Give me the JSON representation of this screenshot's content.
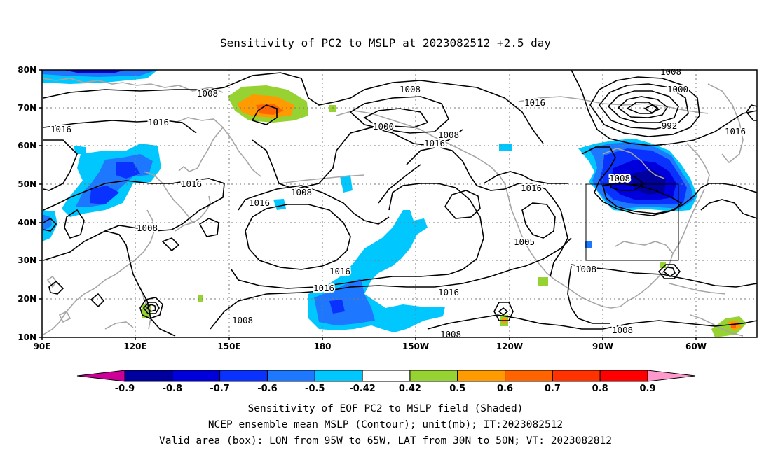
{
  "title": "Sensitivity of PC2 to MSLP at 2023082512 +2.5 day",
  "lat_labels": [
    "80N",
    "70N",
    "60N",
    "50N",
    "40N",
    "30N",
    "20N",
    "10N"
  ],
  "lon_labels": [
    "90E",
    "120E",
    "150E",
    "180",
    "150W",
    "120W",
    "90W",
    "60W"
  ],
  "contour_labels": [
    {
      "text": "1008"
    },
    {
      "text": "1016"
    },
    {
      "text": "1016"
    },
    {
      "text": "1016"
    },
    {
      "text": "1008"
    },
    {
      "text": "1008"
    },
    {
      "text": "1000"
    },
    {
      "text": "1008"
    },
    {
      "text": "1016"
    },
    {
      "text": "1008"
    },
    {
      "text": "1016"
    },
    {
      "text": "1016"
    },
    {
      "text": "1016"
    },
    {
      "text": "1016"
    },
    {
      "text": "1008"
    },
    {
      "text": "1008"
    },
    {
      "text": "1016"
    },
    {
      "text": "1005"
    },
    {
      "text": "1008"
    },
    {
      "text": "1008"
    },
    {
      "text": "1008"
    },
    {
      "text": "1000"
    },
    {
      "text": "992"
    },
    {
      "text": "1016"
    },
    {
      "text": "1016"
    },
    {
      "text": "1008"
    }
  ],
  "colorbar": {
    "colors": [
      "#cc0099",
      "#00009e",
      "#0000dc",
      "#0a32ff",
      "#1e78ff",
      "#00c8ff",
      "#ffffff",
      "#96d232",
      "#ff9b00",
      "#ff6400",
      "#ff3200",
      "#ff0000",
      "#ff99cc"
    ],
    "labels": [
      "-0.9",
      "-0.8",
      "-0.7",
      "-0.6",
      "-0.5",
      "-0.42",
      "0.42",
      "0.5",
      "0.6",
      "0.7",
      "0.8",
      "0.9"
    ]
  },
  "captions": [
    "Sensitivity of EOF PC2 to MSLP field (Shaded)",
    "NCEP ensemble mean MSLP (Contour); unit(mb); IT:2023082512",
    "Valid area (box): LON from 95W to 65W, LAT from 30N to 50N; VT: 2023082812"
  ]
}
